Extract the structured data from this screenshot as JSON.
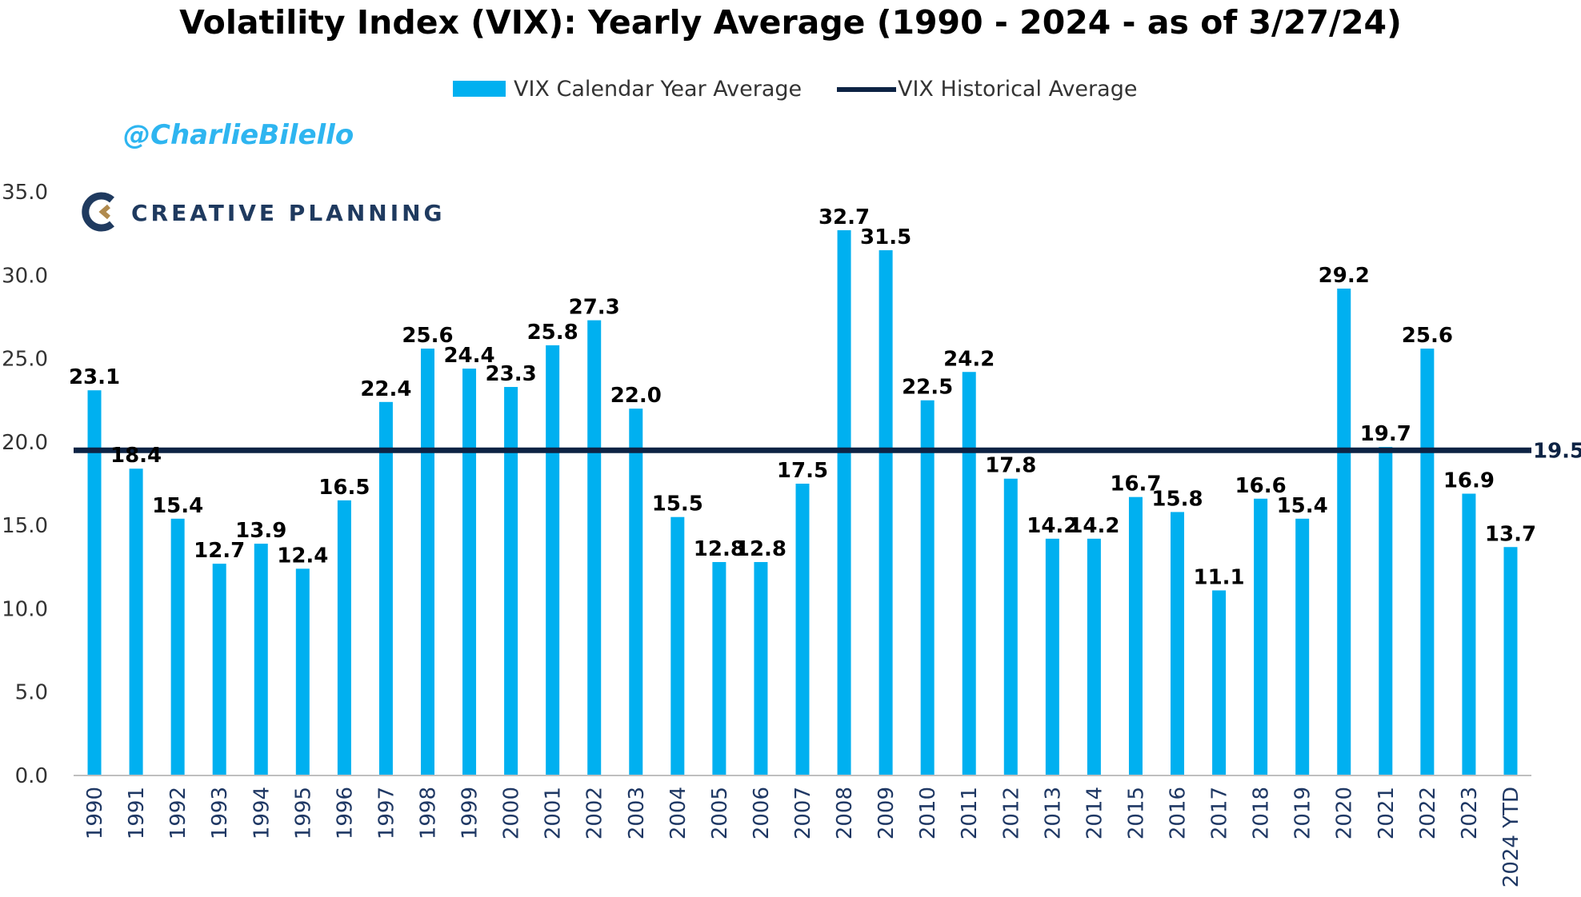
{
  "header": {
    "title": "Volatility Index (VIX): Yearly Average (1990 - 2024 - as of 3/27/24)",
    "handle": "@CharlieBilello",
    "logo_text": "CREATIVE PLANNING"
  },
  "colors": {
    "bar": "#00B0F0",
    "avg_line": "#0D2344",
    "handle": "#2EB5F0",
    "logo": "#1F3A5F",
    "axis": "#BFBFBF"
  },
  "chart_data": {
    "type": "bar",
    "title": "Volatility Index (VIX): Yearly Average (1990 - 2024 - as of 3/27/24)",
    "categories": [
      "1990",
      "1991",
      "1992",
      "1993",
      "1994",
      "1995",
      "1996",
      "1997",
      "1998",
      "1999",
      "2000",
      "2001",
      "2002",
      "2003",
      "2004",
      "2005",
      "2006",
      "2007",
      "2008",
      "2009",
      "2010",
      "2011",
      "2012",
      "2013",
      "2014",
      "2015",
      "2016",
      "2017",
      "2018",
      "2019",
      "2020",
      "2021",
      "2022",
      "2023",
      "2024 YTD"
    ],
    "series": [
      {
        "name": "VIX Calendar Year Average",
        "values": [
          23.1,
          18.4,
          15.4,
          12.7,
          13.9,
          12.4,
          16.5,
          22.4,
          25.6,
          24.4,
          23.3,
          25.8,
          27.3,
          22.0,
          15.5,
          12.8,
          12.8,
          17.5,
          32.7,
          31.5,
          22.5,
          24.2,
          17.8,
          14.2,
          14.2,
          16.7,
          15.8,
          11.1,
          16.6,
          15.4,
          29.2,
          19.7,
          25.6,
          16.9,
          13.7
        ],
        "labels": [
          "23.1",
          "18.4",
          "15.4",
          "12.7",
          "13.9",
          "12.4",
          "16.5",
          "22.4",
          "25.6",
          "24.4",
          "23.3",
          "25.8",
          "27.3",
          "22.0",
          "15.5",
          "12.8",
          "12.8",
          "17.5",
          "32.7",
          "31.5",
          "22.5",
          "24.2",
          "17.8",
          "14.2",
          "14.2",
          "16.7",
          "15.8",
          "11.1",
          "16.6",
          "15.4",
          "29.2",
          "19.7",
          "25.6",
          "16.9",
          "13.7"
        ]
      }
    ],
    "reference_line": {
      "name": "VIX Historical Average",
      "value": 19.5,
      "label": "19.5"
    },
    "yticks": [
      "0.0",
      "5.0",
      "10.0",
      "15.0",
      "20.0",
      "25.0",
      "30.0",
      "35.0"
    ],
    "ylim": [
      0,
      35
    ],
    "xlabel": "",
    "ylabel": "",
    "grid": false,
    "legend_position": "top-center"
  }
}
